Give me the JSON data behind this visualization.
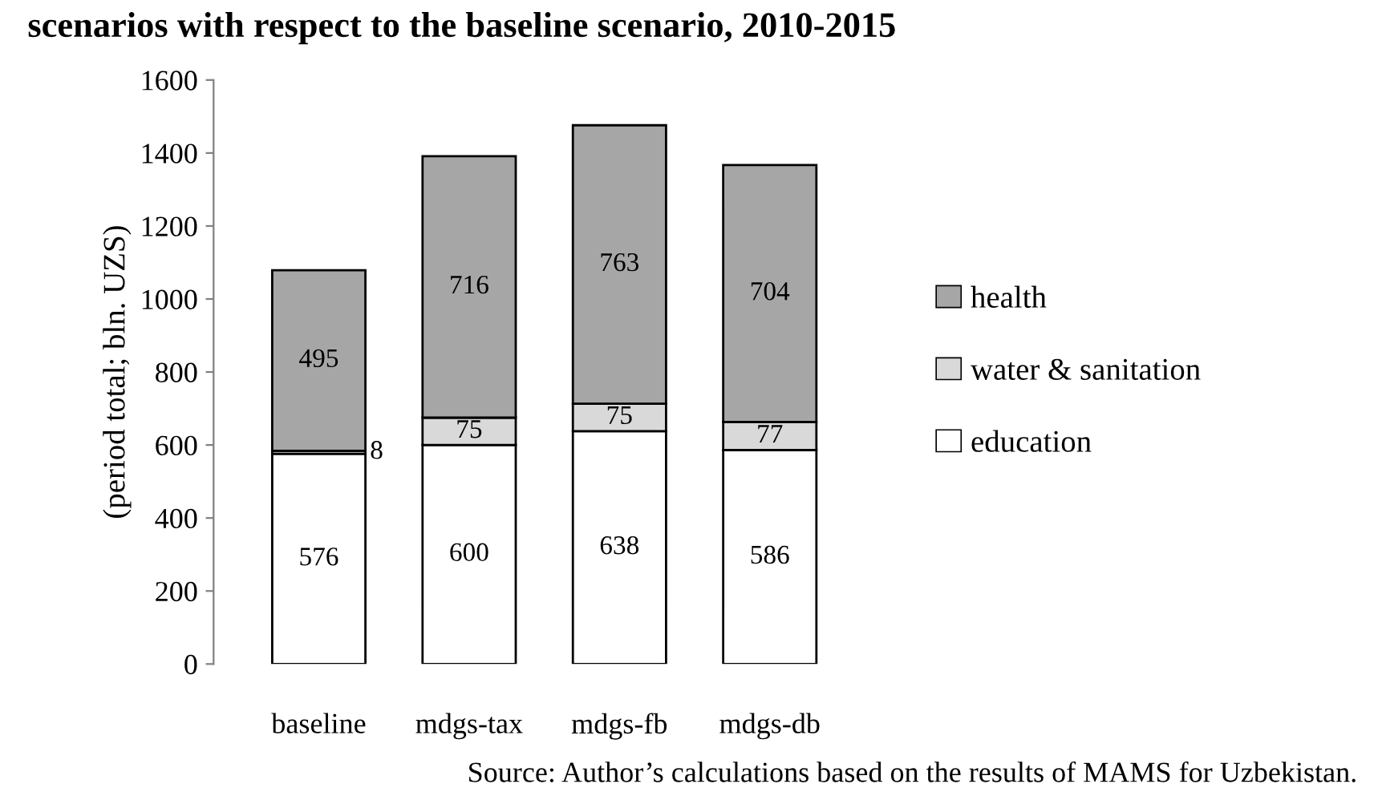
{
  "chart_data": {
    "type": "bar",
    "stacked": true,
    "title": "scenarios with respect to the baseline scenario, 2010-2015",
    "ylabel": "(period total; bln. UZS)",
    "categories": [
      "baseline",
      "mdgs-tax",
      "mdgs-fb",
      "mdgs-db"
    ],
    "series": [
      {
        "name": "education",
        "color": "#ffffff",
        "values": [
          576,
          600,
          638,
          586
        ]
      },
      {
        "name": "water & sanitation",
        "color": "#d9d9d9",
        "values": [
          8,
          75,
          75,
          77
        ]
      },
      {
        "name": "health",
        "color": "#a6a6a6",
        "values": [
          495,
          716,
          763,
          704
        ]
      }
    ],
    "ylim": [
      0,
      1600
    ],
    "yticks": [
      0,
      200,
      400,
      600,
      800,
      1000,
      1200,
      1400,
      1600
    ],
    "data_labels": true,
    "legend": "right",
    "grid": false,
    "annotations": [
      "Source: Author’s calculations based on the results of MAMS for Uzbekistan."
    ]
  }
}
